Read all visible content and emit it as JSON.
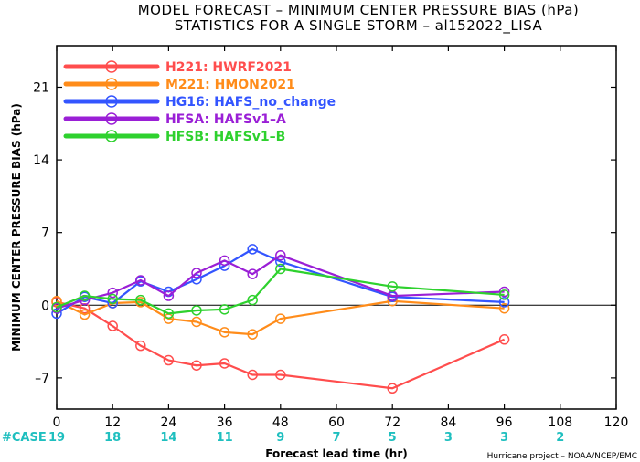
{
  "chart_data": {
    "type": "line",
    "title": "MODEL FORECAST – MINIMUM CENTER PRESSURE BIAS (hPa)",
    "subtitle": "STATISTICS FOR A SINGLE STORM – al152022_LISA",
    "xlabel": "Forecast lead time (hr)",
    "ylabel": "MINIMUM CENTER PRESSURE BIAS (hPa)",
    "xlim": [
      0,
      120
    ],
    "ylim": [
      -10,
      25
    ],
    "x_ticks": [
      0,
      12,
      24,
      36,
      48,
      60,
      72,
      84,
      96,
      108,
      120
    ],
    "y_ticks": [
      -7,
      0,
      7,
      14,
      21
    ],
    "zero_line": true,
    "legend_position": "top-left",
    "case_label": "#CASE",
    "case_counts": [
      {
        "x": 0,
        "n": "19"
      },
      {
        "x": 12,
        "n": "18"
      },
      {
        "x": 24,
        "n": "14"
      },
      {
        "x": 36,
        "n": "11"
      },
      {
        "x": 48,
        "n": "9"
      },
      {
        "x": 60,
        "n": "7"
      },
      {
        "x": 72,
        "n": "5"
      },
      {
        "x": 84,
        "n": "3"
      },
      {
        "x": 96,
        "n": "3"
      },
      {
        "x": 108,
        "n": "2"
      }
    ],
    "credit": "Hurricane project – NOAA/NCEP/EMC",
    "series": [
      {
        "name": "H221: HWRF2021",
        "color": "#ff4d4d",
        "x": [
          0,
          6,
          12,
          18,
          24,
          30,
          36,
          42,
          48,
          72,
          96
        ],
        "y": [
          0.3,
          -0.3,
          -2.0,
          -3.9,
          -5.3,
          -5.8,
          -5.6,
          -6.7,
          -6.7,
          -8.0,
          -3.3
        ]
      },
      {
        "name": "M221: HMON2021",
        "color": "#ff8c1a",
        "x": [
          0,
          6,
          12,
          18,
          24,
          30,
          36,
          42,
          48,
          72,
          96
        ],
        "y": [
          0.4,
          -0.9,
          0.2,
          0.3,
          -1.3,
          -1.6,
          -2.6,
          -2.8,
          -1.3,
          0.4,
          -0.3
        ]
      },
      {
        "name": "HG16: HAFS_no_change",
        "color": "#3355ff",
        "x": [
          0,
          6,
          12,
          18,
          24,
          30,
          36,
          42,
          48,
          72,
          96
        ],
        "y": [
          -0.8,
          0.8,
          0.2,
          2.3,
          1.3,
          2.5,
          3.8,
          5.4,
          4.2,
          0.8,
          0.3
        ]
      },
      {
        "name": "HFSA: HAFSv1–A",
        "color": "#9a1fd6",
        "x": [
          0,
          6,
          12,
          18,
          24,
          30,
          36,
          42,
          48,
          72,
          96
        ],
        "y": [
          -0.3,
          0.5,
          1.2,
          2.4,
          0.9,
          3.1,
          4.3,
          3.0,
          4.8,
          0.9,
          1.3
        ]
      },
      {
        "name": "HFSB: HAFSv1–B",
        "color": "#2ed12e",
        "x": [
          0,
          6,
          12,
          18,
          24,
          30,
          36,
          42,
          48,
          72,
          96
        ],
        "y": [
          -0.2,
          0.9,
          0.6,
          0.5,
          -0.8,
          -0.5,
          -0.4,
          0.5,
          3.5,
          1.8,
          1.0
        ]
      }
    ]
  }
}
